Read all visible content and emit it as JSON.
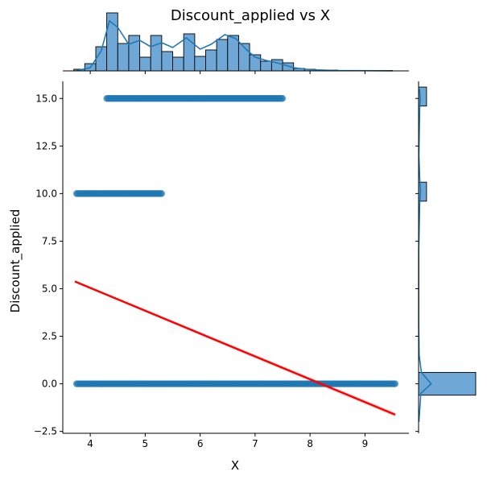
{
  "chart_data": {
    "type": "scatter",
    "title": "Discount_applied vs X",
    "xlabel": "X",
    "ylabel": "Discount_applied",
    "xlim": [
      3.5,
      9.8
    ],
    "ylim": [
      -2.6,
      15.9
    ],
    "xticks": [
      "4",
      "5",
      "6",
      "7",
      "8",
      "9"
    ],
    "yticks": [
      "−2.5",
      "0.0",
      "2.5",
      "5.0",
      "7.5",
      "10.0",
      "12.5",
      "15.0"
    ],
    "xtick_values": [
      4,
      5,
      6,
      7,
      8,
      9
    ],
    "ytick_values": [
      -2.5,
      0,
      2.5,
      5,
      7.5,
      10,
      12.5,
      15
    ],
    "series_bands": [
      {
        "y": 15,
        "x_range": [
          4.3,
          7.5
        ]
      },
      {
        "y": 10,
        "x_range": [
          3.75,
          5.3
        ]
      },
      {
        "y": 0,
        "x_range": [
          3.75,
          9.55
        ]
      }
    ],
    "regression": {
      "x": [
        3.72,
        9.55
      ],
      "y": [
        5.38,
        -1.62
      ],
      "color": "#ff0000"
    },
    "point_color": "#1f77b4",
    "top_histogram": {
      "bin_edges": [
        3.7,
        3.9,
        4.1,
        4.3,
        4.5,
        4.7,
        4.9,
        5.1,
        5.3,
        5.5,
        5.7,
        5.9,
        6.1,
        6.3,
        6.5,
        6.7,
        6.9,
        7.1,
        7.3,
        7.5,
        7.7,
        7.9,
        8.1,
        8.3,
        8.5,
        8.7,
        8.9,
        9.1,
        9.3,
        9.5
      ],
      "counts": [
        2,
        9,
        30,
        72,
        34,
        44,
        17,
        44,
        24,
        17,
        46,
        18,
        26,
        39,
        44,
        34,
        20,
        12,
        14,
        10,
        3,
        2,
        1,
        1,
        0.5,
        0.5,
        0.5,
        0.5,
        0.5
      ],
      "max": 72,
      "kde": [
        [
          3.75,
          0.3
        ],
        [
          4.0,
          4
        ],
        [
          4.2,
          25
        ],
        [
          4.35,
          62
        ],
        [
          4.5,
          54
        ],
        [
          4.7,
          33
        ],
        [
          4.9,
          38
        ],
        [
          5.1,
          30
        ],
        [
          5.3,
          35
        ],
        [
          5.5,
          29
        ],
        [
          5.75,
          41
        ],
        [
          6.0,
          27
        ],
        [
          6.2,
          33
        ],
        [
          6.45,
          45
        ],
        [
          6.65,
          40
        ],
        [
          6.85,
          26
        ],
        [
          7.0,
          17
        ],
        [
          7.2,
          13
        ],
        [
          7.4,
          10
        ],
        [
          7.7,
          4
        ],
        [
          8.0,
          1.5
        ],
        [
          8.5,
          0.5
        ],
        [
          9.5,
          0.1
        ]
      ],
      "color": "#6fa8d6"
    },
    "right_histogram": {
      "bins": [
        {
          "y0": -0.6,
          "y1": 0.6,
          "count": 100
        },
        {
          "y0": 9.6,
          "y1": 10.6,
          "count": 14
        },
        {
          "y0": 14.6,
          "y1": 15.6,
          "count": 14
        }
      ],
      "max": 100,
      "kde": [
        [
          -2.0,
          0.5
        ],
        [
          -0.5,
          4
        ],
        [
          0.0,
          22
        ],
        [
          0.6,
          5
        ],
        [
          1.5,
          1
        ],
        [
          3,
          0.3
        ],
        [
          7,
          0.3
        ],
        [
          9.5,
          2
        ],
        [
          10.1,
          3.5
        ],
        [
          10.8,
          2
        ],
        [
          12,
          0.5
        ],
        [
          14.5,
          2
        ],
        [
          15.0,
          3
        ],
        [
          15.5,
          1.5
        ]
      ],
      "color": "#6fa8d6"
    }
  }
}
